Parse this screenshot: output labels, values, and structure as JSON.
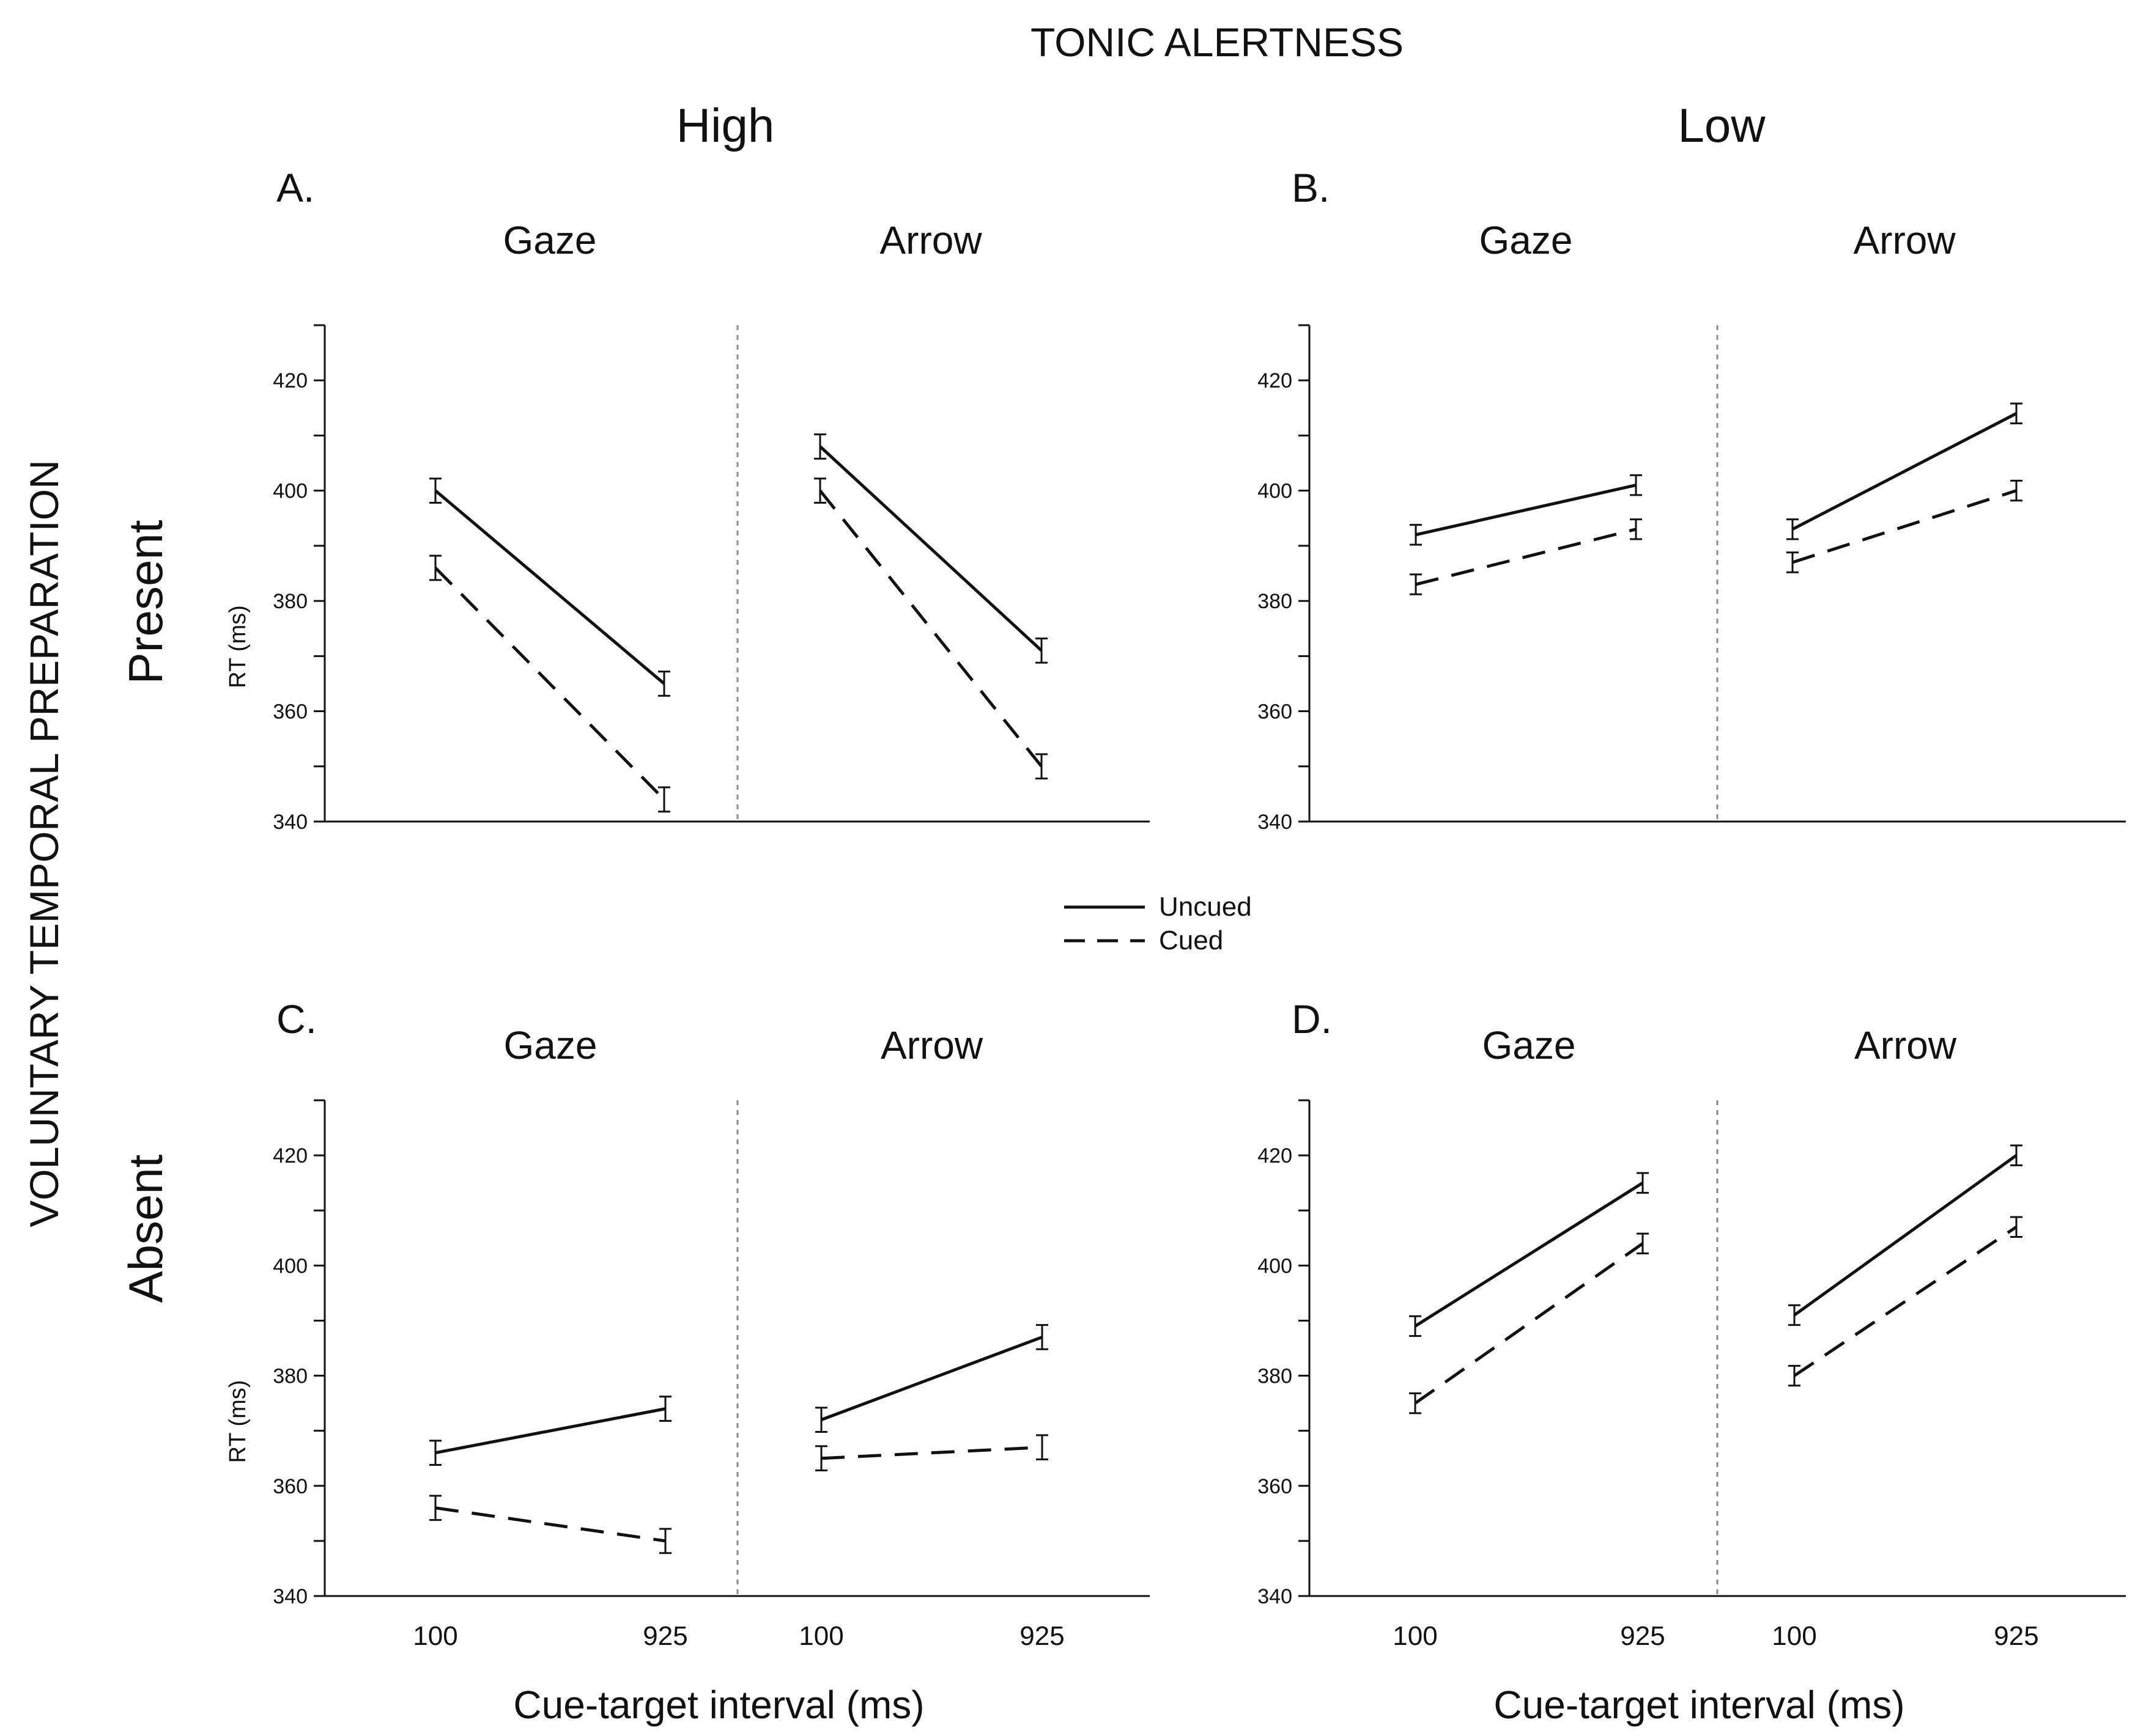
{
  "figure_title": "TONIC ALERTNESS",
  "row_axis_title": "VOLUNTARY TEMPORAL PREPARATION",
  "column_headers": [
    "High",
    "Low"
  ],
  "row_headers": [
    "Present",
    "Absent"
  ],
  "legend": {
    "entries": [
      {
        "label": "Uncued",
        "style": "solid"
      },
      {
        "label": "Cued",
        "style": "dashed"
      }
    ],
    "placement": "center, between rows"
  },
  "colors": {
    "ink": "#111111",
    "divider": "#8a8a8a",
    "background": "#ffffff"
  },
  "chart_data": [
    {
      "panel_label": "A.",
      "alertness": "High",
      "preparation": "Present",
      "type": "line",
      "ylabel": "RT (ms)",
      "xlabel": "",
      "ylim": [
        340,
        430
      ],
      "yticks": [
        340,
        360,
        380,
        400,
        420
      ],
      "ytick_labels": [
        "340",
        "360",
        "380",
        "400",
        "420"
      ],
      "subplots": [
        {
          "name": "Gaze",
          "x": [
            "100",
            "925"
          ],
          "xtick_labels": [
            "",
            ""
          ],
          "series": [
            {
              "name": "Uncued",
              "style": "solid",
              "values": [
                400,
                365
              ],
              "errors": [
                2.2,
                2.2
              ]
            },
            {
              "name": "Cued",
              "style": "dashed",
              "values": [
                386,
                344
              ],
              "errors": [
                2.2,
                2.2
              ]
            }
          ]
        },
        {
          "name": "Arrow",
          "x": [
            "100",
            "925"
          ],
          "xtick_labels": [
            "",
            ""
          ],
          "series": [
            {
              "name": "Uncued",
              "style": "solid",
              "values": [
                408,
                371
              ],
              "errors": [
                2.2,
                2.2
              ]
            },
            {
              "name": "Cued",
              "style": "dashed",
              "values": [
                400,
                350
              ],
              "errors": [
                2.2,
                2.2
              ]
            }
          ]
        }
      ]
    },
    {
      "panel_label": "B.",
      "alertness": "Low",
      "preparation": "Present",
      "type": "line",
      "ylabel": "",
      "xlabel": "",
      "ylim": [
        340,
        430
      ],
      "yticks": [
        340,
        360,
        380,
        400,
        420
      ],
      "ytick_labels": [
        "340",
        "360",
        "380",
        "400",
        "420"
      ],
      "subplots": [
        {
          "name": "Gaze",
          "x": [
            "100",
            "925"
          ],
          "xtick_labels": [
            "",
            ""
          ],
          "series": [
            {
              "name": "Uncued",
              "style": "solid",
              "values": [
                392,
                401
              ],
              "errors": [
                1.8,
                1.8
              ]
            },
            {
              "name": "Cued",
              "style": "dashed",
              "values": [
                383,
                393
              ],
              "errors": [
                1.8,
                1.8
              ]
            }
          ]
        },
        {
          "name": "Arrow",
          "x": [
            "100",
            "925"
          ],
          "xtick_labels": [
            "",
            ""
          ],
          "series": [
            {
              "name": "Uncued",
              "style": "solid",
              "values": [
                393,
                414
              ],
              "errors": [
                1.8,
                1.8
              ]
            },
            {
              "name": "Cued",
              "style": "dashed",
              "values": [
                387,
                400
              ],
              "errors": [
                1.8,
                1.8
              ]
            }
          ]
        }
      ]
    },
    {
      "panel_label": "C.",
      "alertness": "High",
      "preparation": "Absent",
      "type": "line",
      "ylabel": "RT (ms)",
      "xlabel": "Cue-target interval (ms)",
      "ylim": [
        340,
        430
      ],
      "yticks": [
        340,
        360,
        380,
        400,
        420
      ],
      "ytick_labels": [
        "340",
        "360",
        "380",
        "400",
        "420"
      ],
      "subplots": [
        {
          "name": "Gaze",
          "x": [
            "100",
            "925"
          ],
          "xtick_labels": [
            "100",
            "925"
          ],
          "series": [
            {
              "name": "Uncued",
              "style": "solid",
              "values": [
                366,
                374
              ],
              "errors": [
                2.2,
                2.2
              ]
            },
            {
              "name": "Cued",
              "style": "dashed",
              "values": [
                356,
                350
              ],
              "errors": [
                2.2,
                2.2
              ]
            }
          ]
        },
        {
          "name": "Arrow",
          "x": [
            "100",
            "925"
          ],
          "xtick_labels": [
            "100",
            "925"
          ],
          "series": [
            {
              "name": "Uncued",
              "style": "solid",
              "values": [
                372,
                387
              ],
              "errors": [
                2.2,
                2.2
              ]
            },
            {
              "name": "Cued",
              "style": "dashed",
              "values": [
                365,
                367
              ],
              "errors": [
                2.2,
                2.2
              ]
            }
          ]
        }
      ]
    },
    {
      "panel_label": "D.",
      "alertness": "Low",
      "preparation": "Absent",
      "type": "line",
      "ylabel": "",
      "xlabel": "Cue-target interval (ms)",
      "ylim": [
        340,
        430
      ],
      "yticks": [
        340,
        360,
        380,
        400,
        420
      ],
      "ytick_labels": [
        "340",
        "360",
        "380",
        "400",
        "420"
      ],
      "subplots": [
        {
          "name": "Gaze",
          "x": [
            "100",
            "925"
          ],
          "xtick_labels": [
            "100",
            "925"
          ],
          "series": [
            {
              "name": "Uncued",
              "style": "solid",
              "values": [
                389,
                415
              ],
              "errors": [
                1.8,
                1.8
              ]
            },
            {
              "name": "Cued",
              "style": "dashed",
              "values": [
                375,
                404
              ],
              "errors": [
                1.8,
                1.8
              ]
            }
          ]
        },
        {
          "name": "Arrow",
          "x": [
            "100",
            "925"
          ],
          "xtick_labels": [
            "100",
            "925"
          ],
          "series": [
            {
              "name": "Uncued",
              "style": "solid",
              "values": [
                391,
                420
              ],
              "errors": [
                1.8,
                1.8
              ]
            },
            {
              "name": "Cued",
              "style": "dashed",
              "values": [
                380,
                407
              ],
              "errors": [
                1.8,
                1.8
              ]
            }
          ]
        }
      ]
    }
  ]
}
